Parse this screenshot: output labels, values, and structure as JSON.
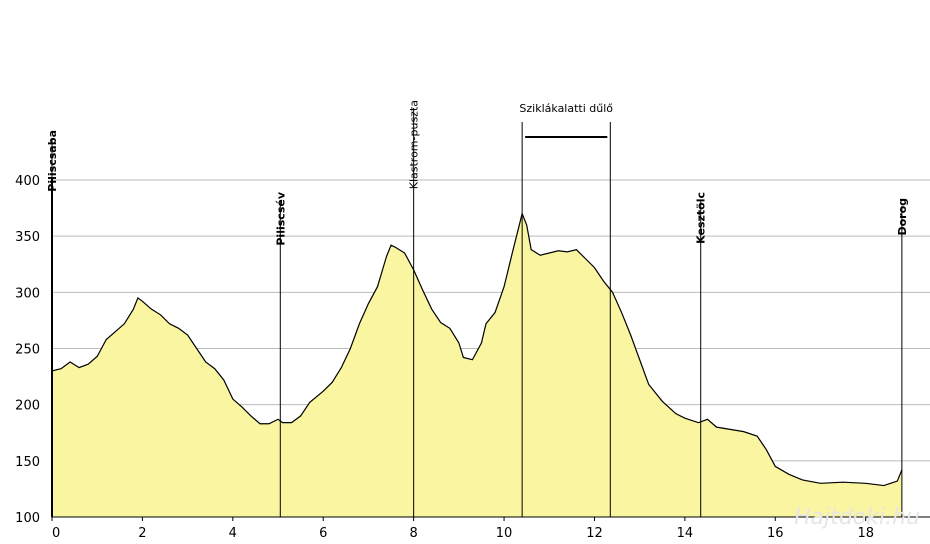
{
  "chart_data": {
    "type": "area",
    "x": [
      0,
      0.2,
      0.4,
      0.6,
      0.8,
      1.0,
      1.2,
      1.4,
      1.6,
      1.8,
      1.9,
      2.0,
      2.2,
      2.4,
      2.6,
      2.8,
      3.0,
      3.2,
      3.4,
      3.6,
      3.8,
      4.0,
      4.2,
      4.4,
      4.6,
      4.8,
      5.0,
      5.1,
      5.3,
      5.5,
      5.7,
      6.0,
      6.2,
      6.4,
      6.6,
      6.8,
      7.0,
      7.2,
      7.4,
      7.5,
      7.6,
      7.8,
      8.0,
      8.2,
      8.4,
      8.6,
      8.8,
      9.0,
      9.1,
      9.3,
      9.5,
      9.6,
      9.8,
      10.0,
      10.2,
      10.4,
      10.5,
      10.6,
      10.8,
      11.0,
      11.2,
      11.4,
      11.6,
      11.8,
      12.0,
      12.2,
      12.4,
      12.6,
      12.8,
      13.0,
      13.2,
      13.5,
      13.8,
      14.0,
      14.3,
      14.5,
      14.7,
      15.0,
      15.3,
      15.6,
      15.8,
      16.0,
      16.3,
      16.6,
      17.0,
      17.5,
      18.0,
      18.4,
      18.7,
      18.8
    ],
    "values": [
      230,
      232,
      238,
      233,
      236,
      243,
      258,
      265,
      272,
      285,
      295,
      292,
      285,
      280,
      272,
      268,
      262,
      250,
      238,
      232,
      222,
      205,
      198,
      190,
      183,
      183,
      187,
      184,
      184,
      190,
      202,
      212,
      220,
      233,
      250,
      272,
      290,
      305,
      332,
      342,
      340,
      335,
      320,
      302,
      285,
      273,
      268,
      255,
      242,
      240,
      255,
      272,
      282,
      305,
      338,
      370,
      360,
      338,
      333,
      335,
      337,
      336,
      338,
      330,
      322,
      310,
      300,
      282,
      262,
      240,
      218,
      203,
      192,
      188,
      184,
      187,
      180,
      178,
      176,
      172,
      160,
      145,
      138,
      133,
      130,
      131,
      130,
      128,
      132,
      142
    ],
    "color": "#f9f5a0",
    "xlim": [
      0,
      19.4
    ],
    "xticks": [
      0,
      2,
      4,
      6,
      8,
      10,
      12,
      14,
      16,
      18
    ],
    "ylim": [
      100,
      400
    ],
    "yticks": [
      100,
      150,
      200,
      250,
      300,
      350,
      400
    ],
    "grid": true,
    "annotations": [
      {
        "label": "Piliscsaba",
        "x": 0
      },
      {
        "label": "Piliscsév",
        "x": 5.05
      },
      {
        "label": "Klastrom-puszta",
        "x": 8.0
      },
      {
        "label": "Sziklákalatti dűlő",
        "x_start": 10.4,
        "x_end": 12.35
      },
      {
        "label": "Kesztölc",
        "x": 14.35
      },
      {
        "label": "Dorog",
        "x": 18.8
      }
    ],
    "watermark": "Hajtdoki.hu"
  }
}
